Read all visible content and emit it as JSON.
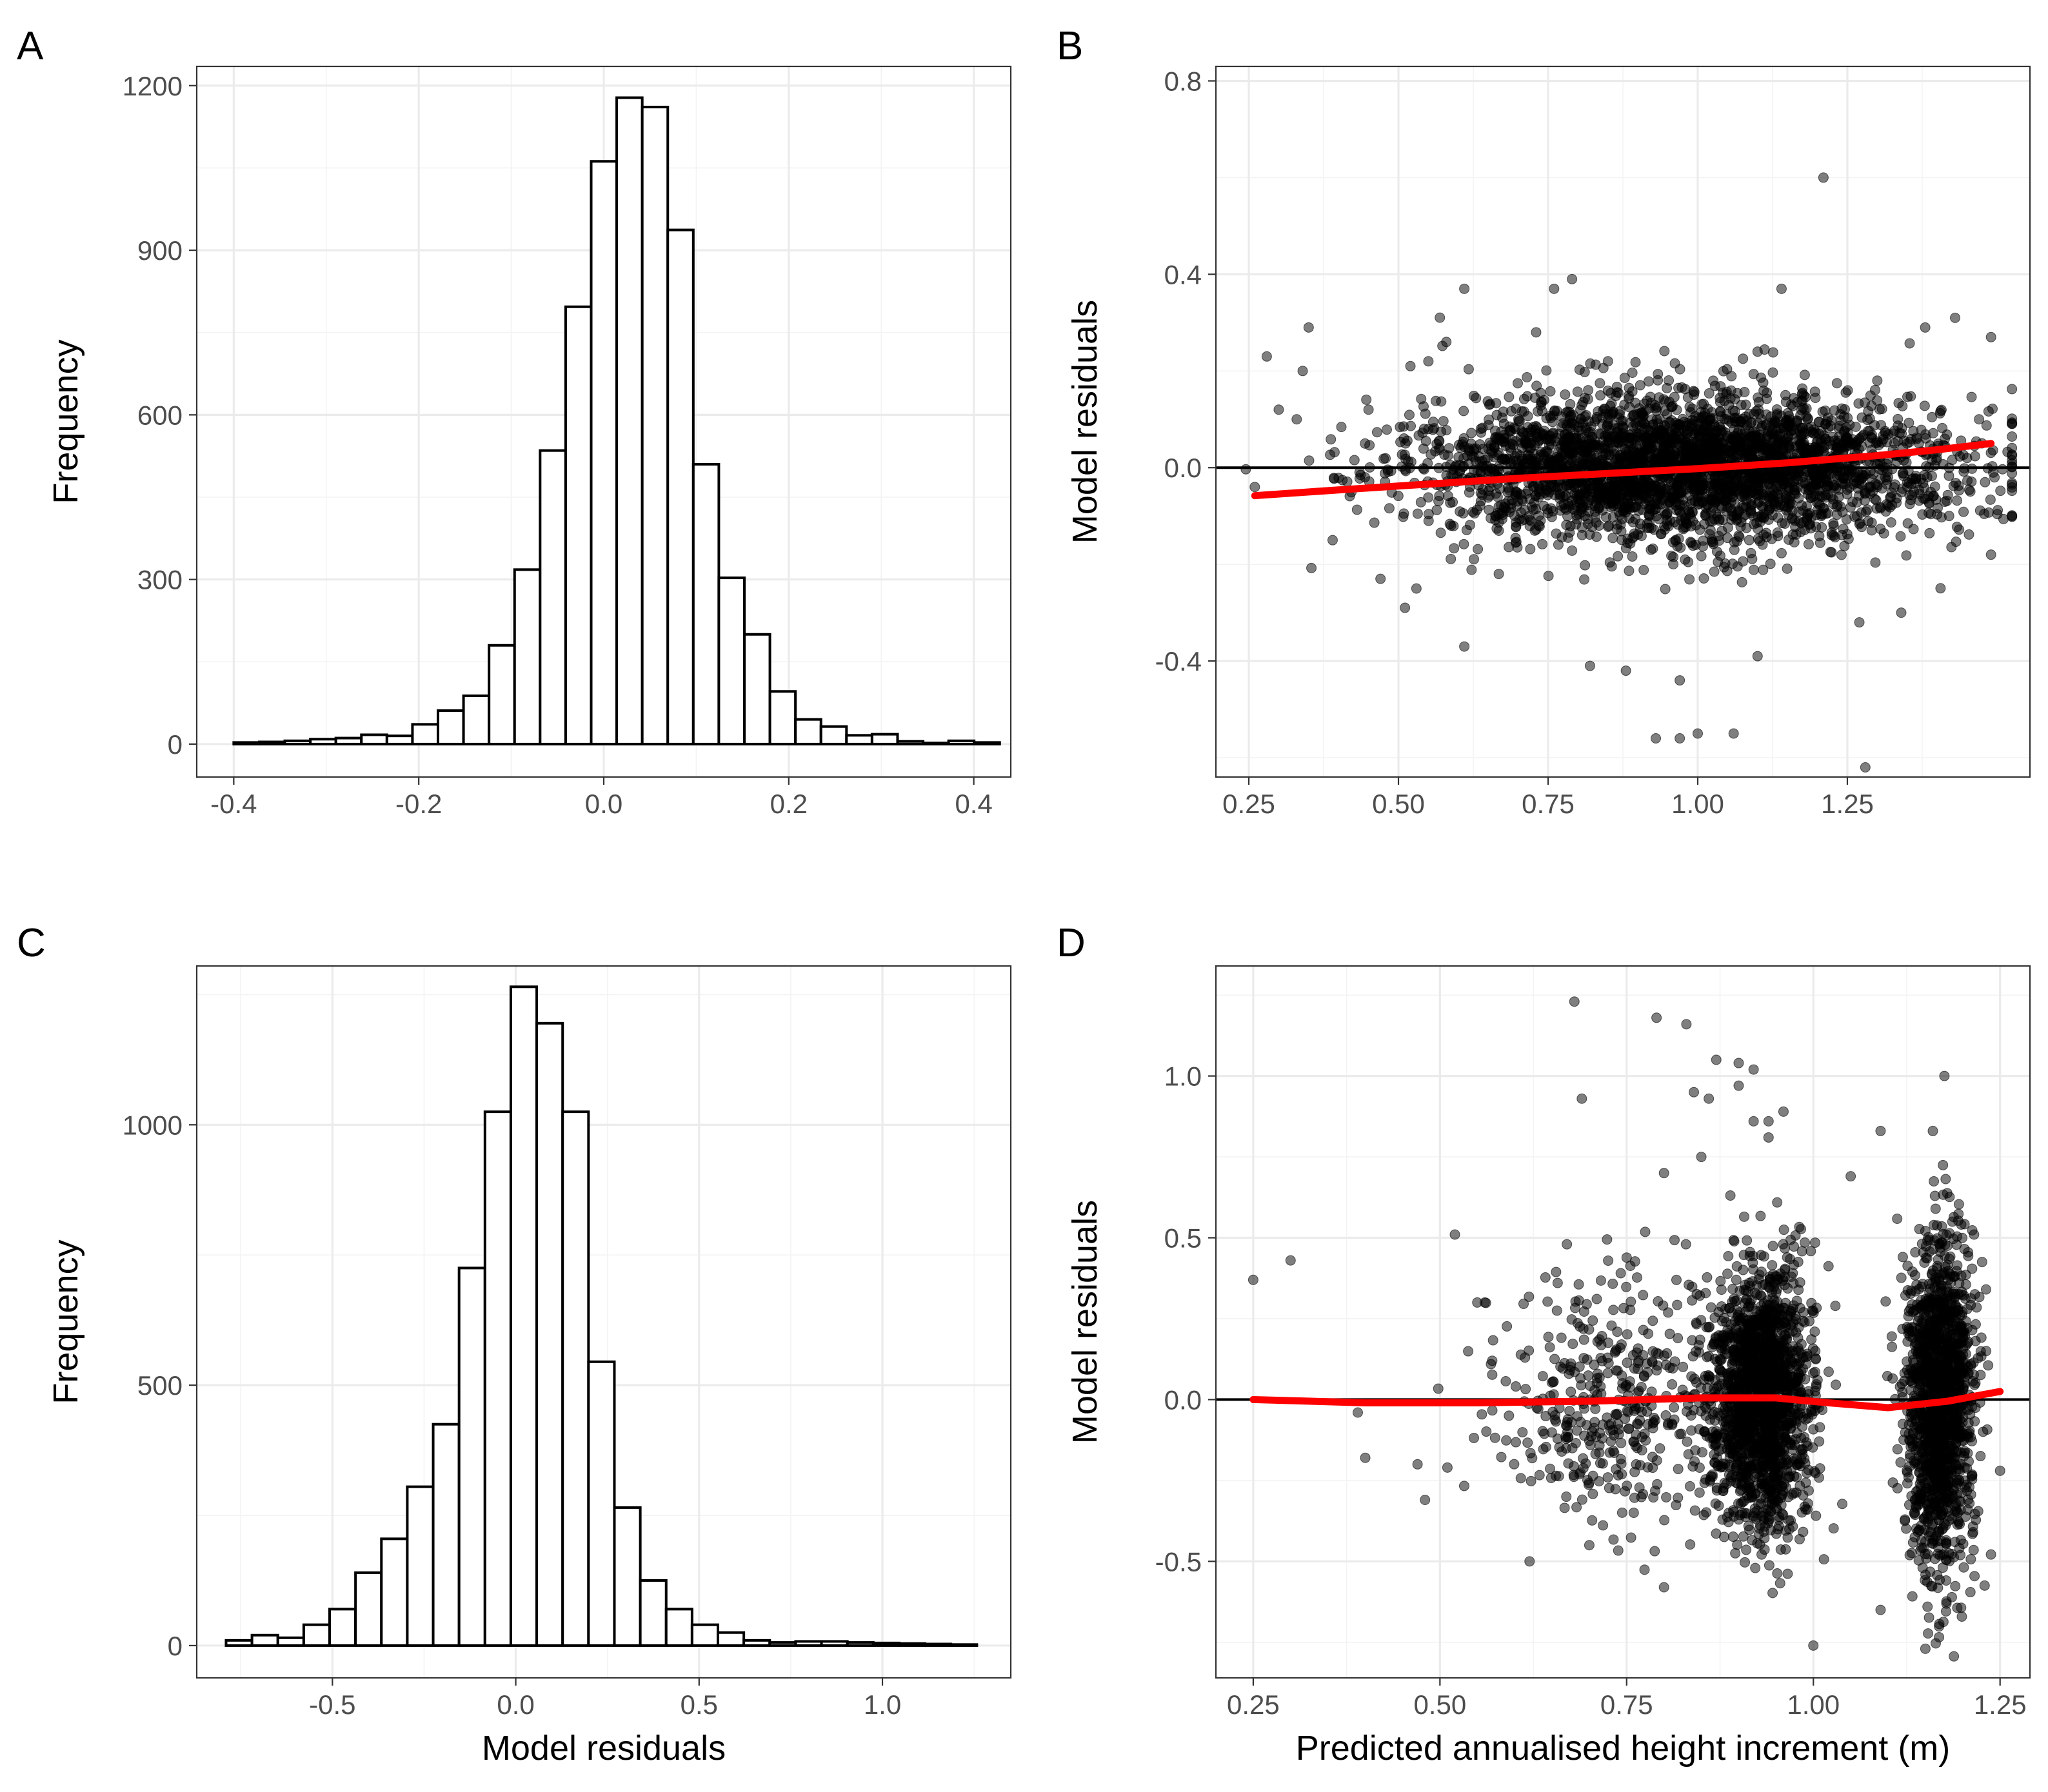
{
  "figure": {
    "colors": {
      "smooth_line": "#ff0000",
      "points": "#000000",
      "bars_fill": "#ffffff",
      "bars_edge": "#000000"
    }
  },
  "chart_data": [
    {
      "panel": "A",
      "type": "bar",
      "subtype": "histogram",
      "title": "",
      "xlabel": "",
      "ylabel": "Frequency",
      "xlim": [
        -0.44,
        0.44
      ],
      "ylim": [
        -60,
        1235
      ],
      "bin_width": 0.0276,
      "bin_start": -0.4,
      "values": [
        3,
        4,
        6,
        9,
        11,
        17,
        15,
        36,
        61,
        88,
        180,
        318,
        535,
        797,
        1062,
        1178,
        1161,
        937,
        510,
        303,
        200,
        96,
        45,
        32,
        16,
        18,
        5,
        2,
        6,
        3
      ],
      "xticks": [
        -0.4,
        -0.2,
        0.0,
        0.2,
        0.4
      ],
      "xtick_labels": [
        "-0.4",
        "-0.2",
        "0.0",
        "0.2",
        "0.4"
      ],
      "yticks": [
        0,
        300,
        600,
        900,
        1200
      ],
      "ytick_labels": [
        "0",
        "300",
        "600",
        "900",
        "1200"
      ],
      "grid": true
    },
    {
      "panel": "B",
      "type": "scatter",
      "title": "",
      "xlabel": "",
      "ylabel": "Model residuals",
      "xlim": [
        0.195,
        1.555
      ],
      "ylim": [
        -0.64,
        0.83
      ],
      "xticks": [
        0.25,
        0.5,
        0.75,
        1.0,
        1.25
      ],
      "xtick_labels": [
        "0.25",
        "0.50",
        "0.75",
        "1.00",
        "1.25"
      ],
      "yticks": [
        -0.4,
        0.0,
        0.4,
        0.8
      ],
      "ytick_labels": [
        "-0.4",
        "0.0",
        "0.4",
        "0.8"
      ],
      "hline": 0,
      "smooth": {
        "x": [
          0.26,
          0.4,
          0.55,
          0.7,
          0.85,
          1.0,
          1.15,
          1.3,
          1.4,
          1.49
        ],
        "y": [
          -0.058,
          -0.046,
          -0.034,
          -0.022,
          -0.012,
          -0.002,
          0.01,
          0.025,
          0.037,
          0.05
        ]
      },
      "points": [
        [
          1.21,
          0.6
        ],
        [
          1.28,
          -0.62
        ],
        [
          0.79,
          0.39
        ],
        [
          0.76,
          0.37
        ],
        [
          0.61,
          0.37
        ],
        [
          0.97,
          -0.56
        ],
        [
          1.0,
          -0.55
        ],
        [
          1.06,
          -0.55
        ],
        [
          0.93,
          -0.56
        ],
        [
          0.28,
          0.23
        ],
        [
          0.35,
          0.29
        ],
        [
          0.34,
          0.2
        ],
        [
          0.61,
          -0.37
        ],
        [
          0.82,
          -0.41
        ],
        [
          0.88,
          -0.42
        ],
        [
          0.97,
          -0.44
        ],
        [
          1.1,
          -0.39
        ],
        [
          1.27,
          -0.32
        ],
        [
          1.34,
          -0.3
        ],
        [
          1.38,
          0.29
        ],
        [
          1.43,
          0.31
        ],
        [
          1.49,
          0.27
        ],
        [
          1.14,
          0.37
        ],
        [
          1.49,
          -0.18
        ],
        [
          0.26,
          -0.04
        ],
        [
          0.3,
          0.12
        ],
        [
          0.33,
          0.1
        ],
        [
          0.39,
          -0.15
        ],
        [
          0.45,
          0.12
        ],
        [
          0.52,
          0.21
        ],
        [
          0.55,
          0.22
        ],
        [
          0.58,
          0.26
        ],
        [
          0.47,
          -0.23
        ],
        [
          0.53,
          -0.25
        ],
        [
          0.55,
          0.08
        ],
        [
          1.35,
          0.05
        ],
        [
          1.45,
          0.02
        ],
        [
          1.48,
          -0.03
        ],
        [
          1.47,
          0.1
        ],
        [
          1.42,
          -0.1
        ],
        [
          1.3,
          0.18
        ],
        [
          1.1,
          0.24
        ],
        [
          0.73,
          0.28
        ],
        [
          0.85,
          0.22
        ]
      ],
      "cloud": {
        "description_only": false,
        "count": 3400,
        "x_mean": 0.98,
        "x_sd": 0.22,
        "y_sd": 0.075
      },
      "grid": true
    },
    {
      "panel": "C",
      "type": "bar",
      "subtype": "histogram",
      "title": "",
      "xlabel": "Model residuals",
      "ylabel": "Frequency",
      "xlim": [
        -0.87,
        1.35
      ],
      "ylim": [
        -62,
        1305
      ],
      "bin_width": 0.0706,
      "bin_start": -0.79,
      "values": [
        10,
        20,
        15,
        40,
        70,
        140,
        205,
        305,
        425,
        725,
        1025,
        1265,
        1195,
        1025,
        545,
        265,
        125,
        70,
        40,
        25,
        10,
        6,
        8,
        8,
        6,
        5,
        4,
        3,
        2
      ],
      "xticks": [
        -0.5,
        0.0,
        0.5,
        1.0
      ],
      "xtick_labels": [
        "-0.5",
        "0.0",
        "0.5",
        "1.0"
      ],
      "yticks": [
        0,
        500,
        1000
      ],
      "ytick_labels": [
        "0",
        "500",
        "1000"
      ],
      "grid": true
    },
    {
      "panel": "D",
      "type": "scatter",
      "title": "",
      "xlabel": "Predicted annualised height increment (m)",
      "ylabel": "Model residuals",
      "xlim": [
        0.2,
        1.29
      ],
      "ylim": [
        -0.86,
        1.34
      ],
      "xticks": [
        0.25,
        0.5,
        0.75,
        1.0,
        1.25
      ],
      "xtick_labels": [
        "0.25",
        "0.50",
        "0.75",
        "1.00",
        "1.25"
      ],
      "yticks": [
        -0.5,
        0.0,
        0.5,
        1.0
      ],
      "ytick_labels": [
        "-0.5",
        "0.0",
        "0.5",
        "1.0"
      ],
      "hline": 0,
      "smooth": {
        "x": [
          0.25,
          0.4,
          0.55,
          0.7,
          0.85,
          0.95,
          1.02,
          1.1,
          1.18,
          1.25
        ],
        "y": [
          0.0,
          -0.01,
          -0.01,
          -0.005,
          0.005,
          0.005,
          -0.01,
          -0.025,
          -0.005,
          0.025
        ]
      },
      "points": [
        [
          0.25,
          0.37
        ],
        [
          0.3,
          0.43
        ],
        [
          0.39,
          -0.04
        ],
        [
          0.4,
          -0.18
        ],
        [
          0.47,
          -0.2
        ],
        [
          0.48,
          -0.31
        ],
        [
          0.51,
          -0.21
        ],
        [
          0.52,
          0.51
        ],
        [
          0.55,
          0.3
        ],
        [
          0.56,
          0.3
        ],
        [
          0.57,
          0.12
        ],
        [
          0.68,
          1.23
        ],
        [
          0.67,
          0.48
        ],
        [
          0.69,
          0.93
        ],
        [
          0.79,
          1.18
        ],
        [
          0.83,
          1.16
        ],
        [
          0.84,
          0.95
        ],
        [
          0.86,
          0.93
        ],
        [
          0.87,
          1.05
        ],
        [
          0.9,
          1.04
        ],
        [
          0.92,
          1.02
        ],
        [
          0.9,
          0.97
        ],
        [
          0.92,
          0.86
        ],
        [
          0.94,
          0.86
        ],
        [
          0.96,
          0.89
        ],
        [
          0.94,
          0.81
        ],
        [
          0.85,
          0.75
        ],
        [
          0.8,
          0.7
        ],
        [
          1.09,
          0.83
        ],
        [
          1.16,
          0.83
        ],
        [
          1.05,
          0.69
        ],
        [
          1.0,
          -0.76
        ],
        [
          1.15,
          -0.77
        ],
        [
          0.62,
          -0.5
        ],
        [
          0.7,
          -0.45
        ],
        [
          0.8,
          -0.58
        ],
        [
          1.25,
          -0.22
        ],
        [
          1.09,
          -0.65
        ]
      ],
      "clouds": [
        {
          "count": 1700,
          "x_mean": 0.93,
          "x_sd": 0.035,
          "y_sd": 0.2
        },
        {
          "count": 1500,
          "x_mean": 1.17,
          "x_sd": 0.022,
          "y_sd": 0.24
        },
        {
          "count": 420,
          "x_mean": 0.74,
          "x_sd": 0.08,
          "y_sd": 0.2
        }
      ],
      "grid": true
    }
  ],
  "panel_tags": [
    "A",
    "B",
    "C",
    "D"
  ]
}
